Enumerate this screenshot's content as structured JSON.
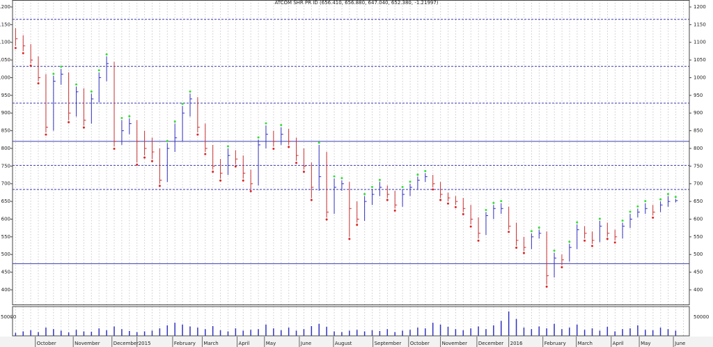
{
  "chart_data": {
    "type": "ohlc",
    "title": "ATCOM SHR PR ID (656.410, 656.880, 647.040, 652.380, -1.21997)",
    "up_color": "#3030c0",
    "down_color": "#c83030",
    "high_dot_color": "#33dd33",
    "low_dot_color": "#dd2222",
    "ylim": [
      358.6,
      1219.7
    ],
    "yticks": [
      400,
      450,
      500,
      550,
      600,
      650,
      700,
      750,
      800,
      850,
      900,
      950,
      1000,
      1050,
      1100,
      1150,
      1200
    ],
    "xlim": [
      -0.4,
      88.8
    ],
    "xticks": [
      {
        "value": 2.6,
        "label": "October"
      },
      {
        "value": 7.6,
        "label": "November"
      },
      {
        "value": 12.7,
        "label": "December"
      },
      {
        "value": 16,
        "label": "2015"
      },
      {
        "value": 20.7,
        "label": "February"
      },
      {
        "value": 24.6,
        "label": "March"
      },
      {
        "value": 29.2,
        "label": "April"
      },
      {
        "value": 32.8,
        "label": "May"
      },
      {
        "value": 37.4,
        "label": "June"
      },
      {
        "value": 41.9,
        "label": "August"
      },
      {
        "value": 47.1,
        "label": "September"
      },
      {
        "value": 51.8,
        "label": "October"
      },
      {
        "value": 56,
        "label": "November"
      },
      {
        "value": 60.8,
        "label": "December"
      },
      {
        "value": 65,
        "label": "2016"
      },
      {
        "value": 69.5,
        "label": "February"
      },
      {
        "value": 73.9,
        "label": "March"
      },
      {
        "value": 78.5,
        "label": "April"
      },
      {
        "value": 82.2,
        "label": "May"
      },
      {
        "value": 86.7,
        "label": "June"
      }
    ],
    "hlines": [
      {
        "value": 1165,
        "style": "dashed"
      },
      {
        "value": 1032,
        "style": "dashed"
      },
      {
        "value": 928,
        "style": "dashed"
      },
      {
        "value": 820,
        "style": "solid"
      },
      {
        "value": 752,
        "style": "dashed"
      },
      {
        "value": 684,
        "style": "dashed"
      },
      {
        "value": 474,
        "style": "solid"
      }
    ],
    "high": [
      1140,
      1120,
      1095,
      1060,
      1010,
      1005,
      1025,
      1015,
      975,
      970,
      955,
      1015,
      1060,
      1045,
      880,
      885,
      880,
      850,
      830,
      800,
      815,
      870,
      920,
      955,
      945,
      870,
      810,
      770,
      800,
      795,
      780,
      740,
      825,
      865,
      850,
      860,
      855,
      830,
      800,
      760,
      810,
      790,
      715,
      710,
      705,
      650,
      665,
      685,
      705,
      695,
      680,
      685,
      700,
      720,
      730,
      725,
      705,
      675,
      665,
      660,
      640,
      605,
      620,
      640,
      645,
      635,
      590,
      550,
      560,
      570,
      565,
      505,
      500,
      530,
      585,
      580,
      565,
      595,
      590,
      570,
      590,
      615,
      630,
      645,
      640,
      650,
      665,
      656.88
    ],
    "low": [
      1090,
      1075,
      1040,
      990,
      845,
      850,
      980,
      880,
      890,
      865,
      870,
      930,
      990,
      805,
      810,
      840,
      760,
      780,
      770,
      700,
      705,
      790,
      820,
      890,
      845,
      790,
      740,
      715,
      725,
      755,
      715,
      685,
      695,
      800,
      805,
      810,
      810,
      765,
      740,
      660,
      680,
      605,
      615,
      680,
      550,
      590,
      595,
      640,
      665,
      660,
      630,
      635,
      665,
      685,
      705,
      690,
      660,
      650,
      640,
      620,
      585,
      545,
      555,
      600,
      615,
      570,
      525,
      510,
      515,
      545,
      415,
      435,
      470,
      480,
      515,
      545,
      530,
      535,
      550,
      540,
      545,
      575,
      605,
      615,
      610,
      620,
      635,
      647.04
    ],
    "close": [
      1110,
      1090,
      1050,
      1000,
      860,
      990,
      1010,
      900,
      960,
      880,
      940,
      1000,
      1040,
      820,
      850,
      870,
      820,
      800,
      790,
      710,
      800,
      830,
      900,
      940,
      860,
      800,
      750,
      730,
      780,
      770,
      730,
      700,
      810,
      840,
      820,
      840,
      820,
      780,
      750,
      690,
      720,
      620,
      690,
      700,
      630,
      600,
      650,
      670,
      690,
      670,
      640,
      670,
      690,
      710,
      720,
      700,
      670,
      660,
      650,
      630,
      600,
      560,
      610,
      630,
      630,
      580,
      540,
      520,
      550,
      560,
      440,
      490,
      485,
      520,
      570,
      560,
      540,
      580,
      560,
      550,
      580,
      600,
      620,
      630,
      620,
      640,
      650,
      652.38
    ],
    "volume": {
      "color": "#3030c0",
      "ylim": [
        0,
        78000
      ],
      "yticks": [
        50000
      ],
      "values": [
        8000,
        12000,
        15000,
        10000,
        22000,
        18000,
        14000,
        9000,
        16000,
        12000,
        11000,
        20000,
        15000,
        25000,
        18000,
        13000,
        10000,
        12000,
        14000,
        20000,
        28000,
        35000,
        30000,
        25000,
        22000,
        18000,
        26000,
        15000,
        12000,
        20000,
        14000,
        16000,
        18000,
        30000,
        20000,
        15000,
        22000,
        14000,
        18000,
        26000,
        32000,
        24000,
        12000,
        10000,
        14000,
        16000,
        12000,
        15000,
        13000,
        18000,
        10000,
        14000,
        16000,
        22000,
        20000,
        35000,
        30000,
        24000,
        18000,
        15000,
        20000,
        25000,
        18000,
        28000,
        40000,
        65000,
        45000,
        22000,
        18000,
        25000,
        20000,
        32000,
        18000,
        22000,
        30000,
        16000,
        20000,
        14000,
        24000,
        12000,
        18000,
        20000,
        28000,
        16000,
        15000,
        22000,
        18000,
        14000
      ]
    }
  }
}
